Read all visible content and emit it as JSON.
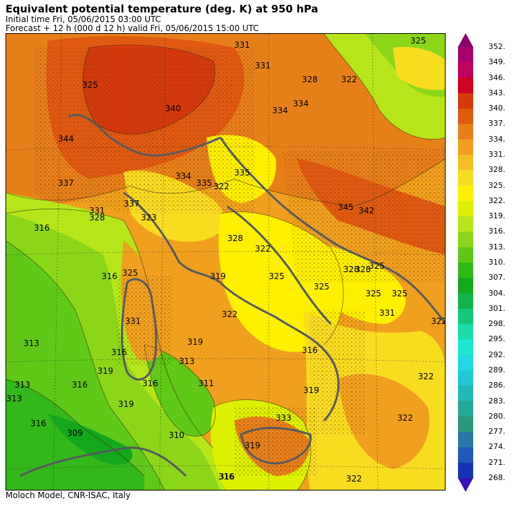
{
  "header": {
    "title": "Equivalent potential temperature (deg. K) at 950 hPa",
    "initial_time": "Initial time  Fri, 05/06/2015  03:00 UTC",
    "forecast": "Forecast  +  12 h  (000 d 12 h)  valid Fri, 05/06/2015 15:00 UTC"
  },
  "footer": {
    "credit": "Moloch Model, CNR-ISAC, Italy"
  },
  "colorbar": {
    "labels": [
      "352.",
      "349.",
      "346.",
      "343.",
      "340.",
      "337.",
      "334.",
      "331.",
      "328.",
      "325.",
      "322.",
      "319.",
      "316.",
      "313.",
      "310.",
      "307.",
      "304.",
      "301.",
      "298.",
      "295.",
      "292.",
      "289.",
      "286.",
      "283.",
      "280.",
      "277.",
      "274.",
      "271.",
      "268."
    ],
    "colors": [
      "#a8006e",
      "#c2005e",
      "#d2001e",
      "#d63a0c",
      "#e05a10",
      "#e8801a",
      "#f0a01e",
      "#f5be22",
      "#f8dc20",
      "#fff000",
      "#ddf000",
      "#b6e61a",
      "#8cd61a",
      "#60c818",
      "#32b818",
      "#14a81c",
      "#12b44a",
      "#16c87a",
      "#1adcaa",
      "#1ee8d2",
      "#20d8e6",
      "#1ec8d8",
      "#22b8b8",
      "#26a898",
      "#2a9878",
      "#2a78a8",
      "#2058b8",
      "#1434b4"
    ]
  },
  "map": {
    "contour_labels": [
      "325",
      "331",
      "331",
      "322",
      "325",
      "328",
      "334",
      "334",
      "340",
      "344",
      "337",
      "331",
      "322",
      "334",
      "335",
      "335",
      "345",
      "342",
      "337",
      "323",
      "328",
      "316",
      "316",
      "325",
      "319",
      "331",
      "313",
      "316",
      "319",
      "313",
      "316",
      "316",
      "313",
      "316",
      "309",
      "310",
      "316",
      "319",
      "322",
      "319",
      "328",
      "322",
      "325",
      "328",
      "325",
      "325",
      "331",
      "316",
      "311",
      "313",
      "322",
      "322",
      "319",
      "316",
      "322",
      "322",
      "328",
      "325",
      "325",
      "333",
      "319"
    ]
  }
}
